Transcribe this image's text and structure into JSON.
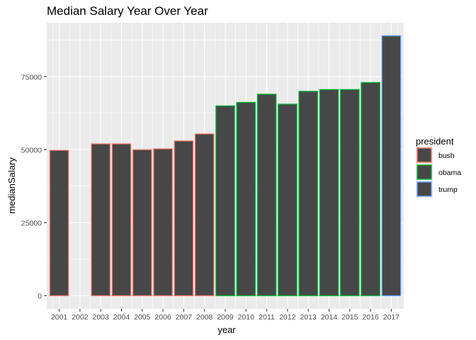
{
  "chart_data": {
    "type": "bar",
    "title": "Median Salary Year Over Year",
    "xlabel": "year",
    "ylabel": "medianSalary",
    "categories": [
      "2001",
      "2002",
      "2003",
      "2004",
      "2005",
      "2006",
      "2007",
      "2008",
      "2009",
      "2010",
      "2011",
      "2012",
      "2013",
      "2014",
      "2015",
      "2016",
      "2017"
    ],
    "values": [
      49800,
      null,
      52000,
      52000,
      50000,
      50300,
      53000,
      55400,
      65000,
      66200,
      69000,
      65600,
      70000,
      70600,
      70600,
      73000,
      89000
    ],
    "outline_group": [
      "bush",
      "bush",
      "bush",
      "bush",
      "bush",
      "bush",
      "bush",
      "bush",
      "obama",
      "obama",
      "obama",
      "obama",
      "obama",
      "obama",
      "obama",
      "obama",
      "trump"
    ],
    "ylim": [
      -4500,
      93500
    ],
    "yticks": [
      0,
      25000,
      50000,
      75000
    ],
    "ytick_labels": [
      "0",
      "25000",
      "50000",
      "75000"
    ],
    "grid": true,
    "legend": {
      "title": "president",
      "position": "right",
      "entries": [
        {
          "label": "bush",
          "color": "#f8766d"
        },
        {
          "label": "obama",
          "color": "#00ba38"
        },
        {
          "label": "trump",
          "color": "#619cff"
        }
      ]
    },
    "colors": {
      "panel_background": "#ebebeb",
      "grid_major": "#ffffff",
      "bar_fill": "#474747"
    }
  }
}
